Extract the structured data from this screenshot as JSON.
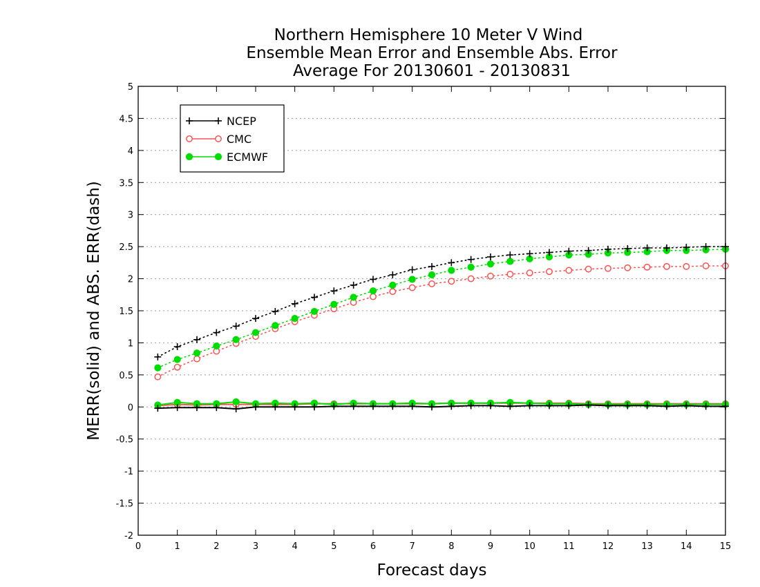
{
  "chart_data": {
    "type": "line",
    "title": [
      "Northern Hemisphere 10 Meter V Wind",
      "Ensemble Mean Error and Ensemble Abs. Error",
      "Average For 20130601 - 20130831"
    ],
    "xlabel": "Forecast days",
    "ylabel": "MERR(solid) and ABS. ERR(dash)",
    "xlim": [
      0,
      15
    ],
    "ylim": [
      -2,
      5
    ],
    "xticks": [
      0,
      1,
      2,
      3,
      4,
      5,
      6,
      7,
      8,
      9,
      10,
      11,
      12,
      13,
      14,
      15
    ],
    "yticks": [
      -2,
      -1.5,
      -1,
      -0.5,
      0,
      0.5,
      1,
      1.5,
      2,
      2.5,
      3,
      3.5,
      4,
      4.5,
      5
    ],
    "ytick_labels": [
      "-2",
      "-1.5",
      "-1",
      "-0.5",
      "0",
      "0.5",
      "1",
      "1.5",
      "2",
      "2.5",
      "3",
      "3.5",
      "4",
      "4.5",
      "5"
    ],
    "grid": "horizontal dotted",
    "legend_position": "top-left",
    "x": [
      0.5,
      1,
      1.5,
      2,
      2.5,
      3,
      3.5,
      4,
      4.5,
      5,
      5.5,
      6,
      6.5,
      7,
      7.5,
      8,
      8.5,
      9,
      9.5,
      10,
      10.5,
      11,
      11.5,
      12,
      12.5,
      13,
      13.5,
      14,
      14.5,
      15
    ],
    "series": [
      {
        "name": "NCEP",
        "color": "#000000",
        "marker": "plus",
        "mean_error": [
          -0.02,
          -0.01,
          -0.01,
          -0.01,
          -0.03,
          0.0,
          0.0,
          0.0,
          0.0,
          0.01,
          0.01,
          0.01,
          0.01,
          0.01,
          0.0,
          0.01,
          0.02,
          0.02,
          0.01,
          0.02,
          0.02,
          0.02,
          0.03,
          0.02,
          0.02,
          0.02,
          0.01,
          0.02,
          0.01,
          0.01
        ],
        "abs_error": [
          0.78,
          0.94,
          1.05,
          1.16,
          1.26,
          1.38,
          1.49,
          1.61,
          1.71,
          1.81,
          1.9,
          1.99,
          2.06,
          2.14,
          2.19,
          2.25,
          2.3,
          2.34,
          2.37,
          2.39,
          2.41,
          2.43,
          2.44,
          2.46,
          2.47,
          2.48,
          2.48,
          2.49,
          2.5,
          2.5
        ]
      },
      {
        "name": "CMC",
        "color": "#ff5050",
        "marker": "open-circle",
        "mean_error": [
          0.02,
          0.04,
          0.03,
          0.04,
          0.04,
          0.04,
          0.04,
          0.04,
          0.05,
          0.05,
          0.05,
          0.05,
          0.05,
          0.05,
          0.05,
          0.06,
          0.06,
          0.06,
          0.06,
          0.06,
          0.06,
          0.06,
          0.05,
          0.05,
          0.05,
          0.05,
          0.05,
          0.05,
          0.05,
          0.05
        ],
        "abs_error": [
          0.47,
          0.62,
          0.75,
          0.87,
          0.99,
          1.1,
          1.22,
          1.33,
          1.43,
          1.53,
          1.63,
          1.72,
          1.8,
          1.86,
          1.92,
          1.96,
          2.0,
          2.04,
          2.07,
          2.09,
          2.11,
          2.13,
          2.15,
          2.16,
          2.17,
          2.18,
          2.19,
          2.19,
          2.2,
          2.2
        ]
      },
      {
        "name": "ECMWF",
        "color": "#00dd00",
        "marker": "filled-circle",
        "mean_error": [
          0.03,
          0.07,
          0.05,
          0.05,
          0.08,
          0.05,
          0.06,
          0.05,
          0.06,
          0.04,
          0.06,
          0.05,
          0.05,
          0.06,
          0.05,
          0.06,
          0.06,
          0.06,
          0.07,
          0.06,
          0.05,
          0.05,
          0.04,
          0.04,
          0.04,
          0.04,
          0.04,
          0.04,
          0.04,
          0.04
        ],
        "abs_error": [
          0.61,
          0.74,
          0.84,
          0.95,
          1.05,
          1.16,
          1.27,
          1.38,
          1.49,
          1.6,
          1.71,
          1.81,
          1.9,
          1.99,
          2.06,
          2.13,
          2.18,
          2.23,
          2.27,
          2.31,
          2.34,
          2.37,
          2.38,
          2.4,
          2.41,
          2.42,
          2.44,
          2.44,
          2.45,
          2.46
        ]
      }
    ]
  }
}
